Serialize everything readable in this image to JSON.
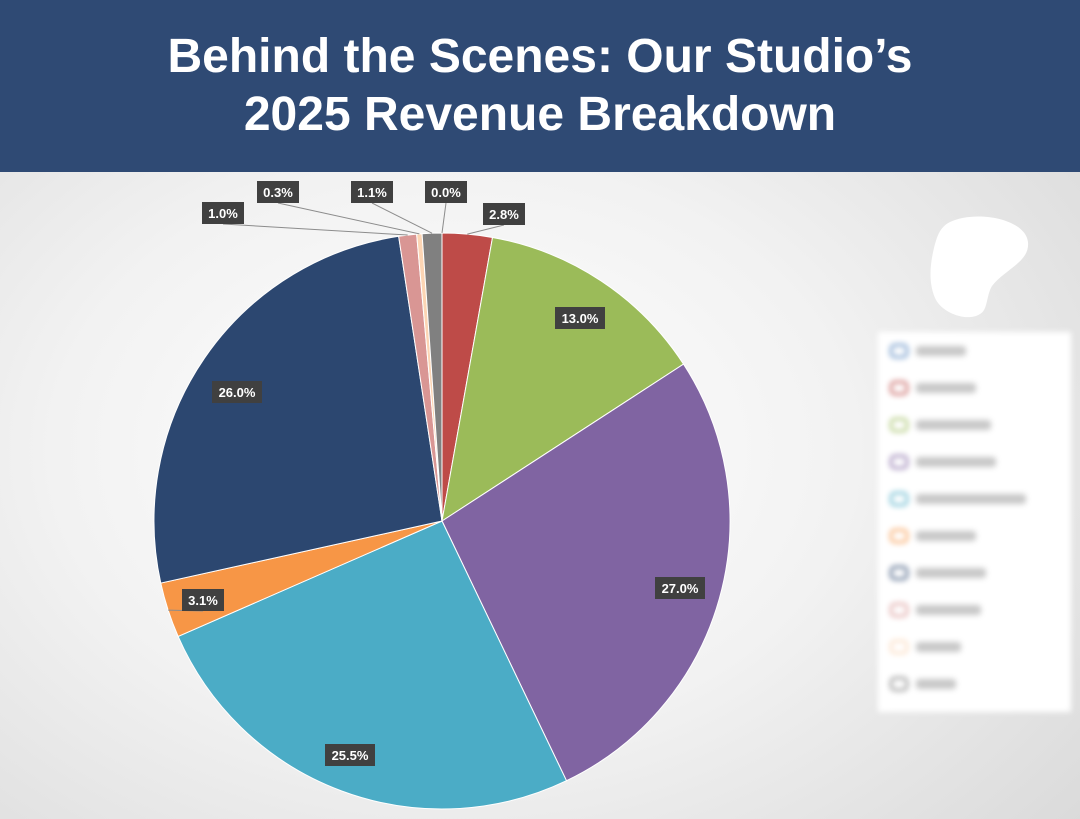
{
  "header": {
    "title_line1": "Behind the Scenes: Our Studio’s",
    "title_line2": "2025 Revenue Breakdown",
    "background_color": "#2f4a74"
  },
  "chart_data": {
    "type": "pie",
    "start_angle_deg": 0,
    "direction": "clockwise",
    "legend_position": "right",
    "slices": [
      {
        "value": 2.8,
        "label": "2.8%",
        "color": "#be4b48"
      },
      {
        "value": 13.0,
        "label": "13.0%",
        "color": "#9bbb59"
      },
      {
        "value": 27.0,
        "label": "27.0%",
        "color": "#8064a2"
      },
      {
        "value": 25.5,
        "label": "25.5%",
        "color": "#4bacc6"
      },
      {
        "value": 3.1,
        "label": "3.1%",
        "color": "#f79646"
      },
      {
        "value": 26.0,
        "label": "26.0%",
        "color": "#2c4770"
      },
      {
        "value": 1.0,
        "label": "1.0%",
        "color": "#d99694"
      },
      {
        "value": 0.3,
        "label": "0.3%",
        "color": "#fcd5b4"
      },
      {
        "value": 1.1,
        "label": "1.1%",
        "color": "#808080"
      },
      {
        "value": 0.0,
        "label": "0.0%",
        "color": "#4f81bd"
      }
    ]
  }
}
